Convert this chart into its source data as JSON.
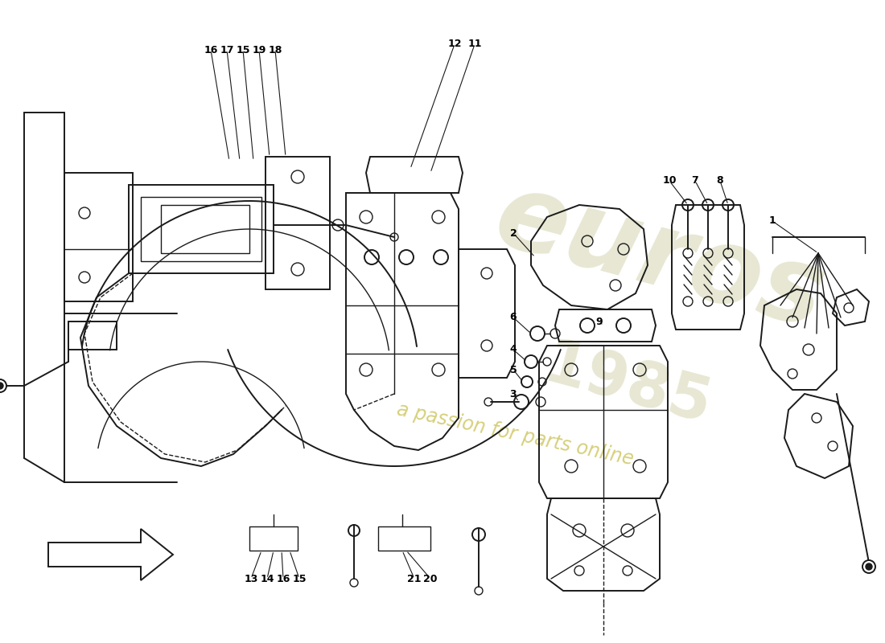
{
  "background_color": "#ffffff",
  "line_color": "#1a1a1a",
  "label_fontsize": 9,
  "label_fontweight": "bold",
  "label_color": "#000000",
  "watermark_euros_color": "#d0cfa8",
  "watermark_1985_color": "#d0cfa8",
  "watermark_passion_color": "#c8c050",
  "figsize": [
    11.0,
    8.0
  ],
  "dpi": 100
}
